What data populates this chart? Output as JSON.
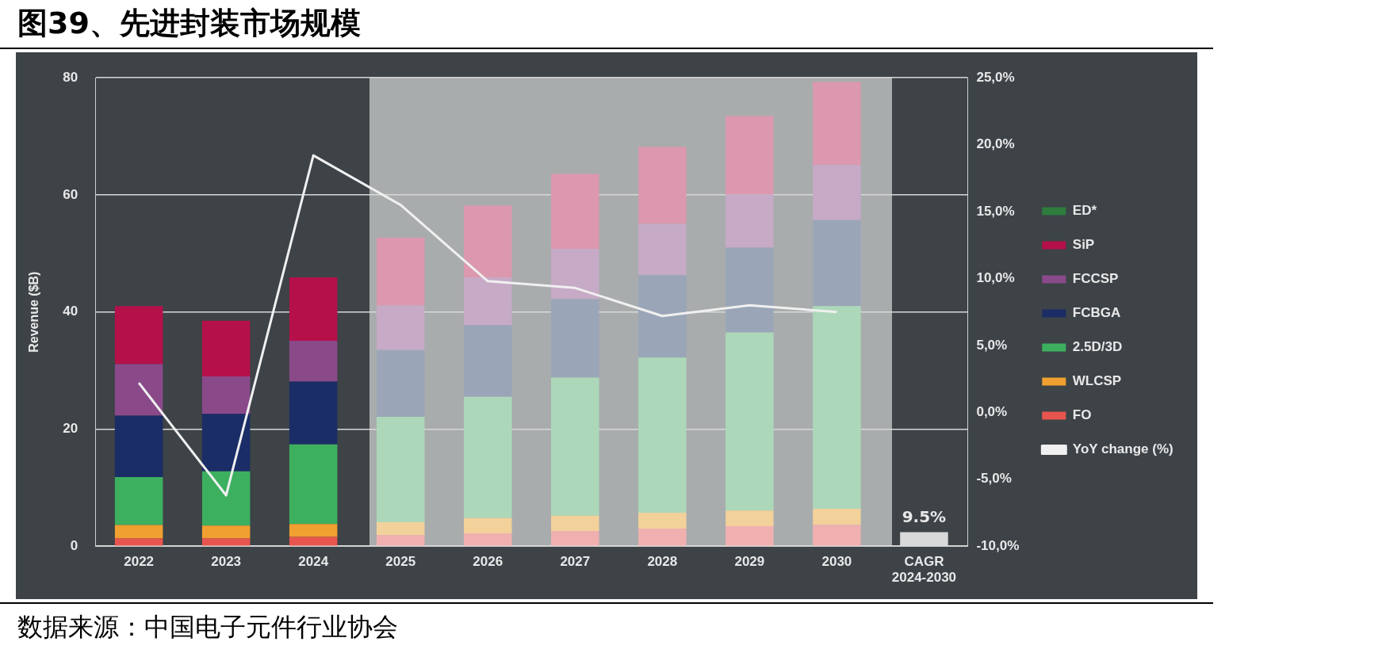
{
  "chart_data": {
    "type": "bar",
    "title": "图39、先进封装市场规模",
    "ylabel": "Revenue ($B)",
    "stacked": true,
    "grid": "y",
    "legend": "right",
    "marker": "none",
    "line_style": "solid",
    "categories": [
      "2022",
      "2023",
      "2024",
      "2025",
      "2026",
      "2027",
      "2028",
      "2029",
      "2030",
      "CAGR 2024-2030"
    ],
    "ylim": [
      0,
      80
    ],
    "yticks": [
      0,
      20,
      40,
      60,
      80
    ],
    "y2lim": [
      -10,
      25
    ],
    "y2ticks": [
      {
        "value": -10,
        "label": "-10,0%"
      },
      {
        "value": -5,
        "label": "-5,0%"
      },
      {
        "value": 0,
        "label": "0,0%"
      },
      {
        "value": 5,
        "label": "5,0%"
      },
      {
        "value": 10,
        "label": "10,0%"
      },
      {
        "value": 15,
        "label": "15,0%"
      },
      {
        "value": 20,
        "label": "20,0%"
      },
      {
        "value": 25,
        "label": "25,0%"
      }
    ],
    "annotations": [
      "数据来源：中国电子元件行业协会",
      "9.5%"
    ],
    "series": [
      {
        "name": "FO",
        "color": "#e8554e",
        "colors": [
          "#e8554e",
          "#e8554e",
          "#e8554e",
          "#f0b0b0",
          "#f0b0b0",
          "#f0b0b0",
          "#f0b0b0",
          "#f0b0b0",
          "#f0b0b0",
          null
        ],
        "values": [
          1.3,
          1.3,
          1.6,
          1.9,
          2.2,
          2.6,
          3.0,
          3.4,
          3.6,
          null
        ]
      },
      {
        "name": "WLCSP",
        "color": "#f0a030",
        "colors": [
          "#f0a030",
          "#f0a030",
          "#f0a030",
          "#f2d19a",
          "#f2d19a",
          "#f2d19a",
          "#f2d19a",
          "#f2d19a",
          "#f2d19a",
          null
        ],
        "values": [
          2.3,
          2.2,
          2.2,
          2.2,
          2.6,
          2.6,
          2.7,
          2.7,
          2.8,
          null
        ]
      },
      {
        "name": "2.5D/3D",
        "color": "#3db060",
        "colors": [
          "#3db060",
          "#3db060",
          "#3db060",
          "#acd8b9",
          "#acd8b9",
          "#acd8b9",
          "#acd8b9",
          "#acd8b9",
          "#acd8b9",
          null
        ],
        "values": [
          8.2,
          9.3,
          13.6,
          18.0,
          20.7,
          23.6,
          26.5,
          30.4,
          34.6,
          null
        ]
      },
      {
        "name": "FCBGA",
        "color": "#1b2d66",
        "colors": [
          "#1b2d66",
          "#1b2d66",
          "#1b2d66",
          "#9aa6b8",
          "#9aa6b8",
          "#9aa6b8",
          "#9aa6b8",
          "#9aa6b8",
          "#9aa6b8",
          null
        ],
        "values": [
          10.5,
          9.8,
          10.7,
          11.4,
          12.3,
          13.4,
          14.1,
          14.5,
          14.7,
          null
        ]
      },
      {
        "name": "FCCSP",
        "color": "#8a4a8a",
        "colors": [
          "#8a4a8a",
          "#8a4a8a",
          "#8a4a8a",
          "#c6aac6",
          "#c6aac6",
          "#c6aac6",
          "#c6aac6",
          "#c6aac6",
          "#c6aac6",
          null
        ],
        "values": [
          8.8,
          6.4,
          7.0,
          7.6,
          8.1,
          8.6,
          8.8,
          9.1,
          9.4,
          null
        ]
      },
      {
        "name": "SiP",
        "color": "#b5104a",
        "colors": [
          "#b5104a",
          "#b5104a",
          "#b5104a",
          "#db98ae",
          "#db98ae",
          "#db98ae",
          "#db98ae",
          "#db98ae",
          "#db98ae",
          null
        ],
        "values": [
          9.9,
          9.5,
          10.8,
          11.6,
          12.3,
          12.8,
          13.1,
          13.4,
          14.2,
          null
        ]
      },
      {
        "name": "ED*",
        "color": "#2e7d3e",
        "values": [
          null,
          null,
          null,
          null,
          null,
          null,
          null,
          null,
          null,
          null
        ]
      },
      {
        "color": "#d9d9d9",
        "values": [
          null,
          null,
          null,
          null,
          null,
          null,
          null,
          null,
          null,
          2.4
        ]
      },
      {
        "name": "YoY change (%)",
        "type": "line",
        "axis": "y2",
        "color": "#f0f0f0",
        "values": [
          2.2,
          -6.2,
          19.2,
          15.5,
          9.8,
          9.3,
          7.2,
          8.0,
          7.5,
          null
        ]
      }
    ]
  }
}
